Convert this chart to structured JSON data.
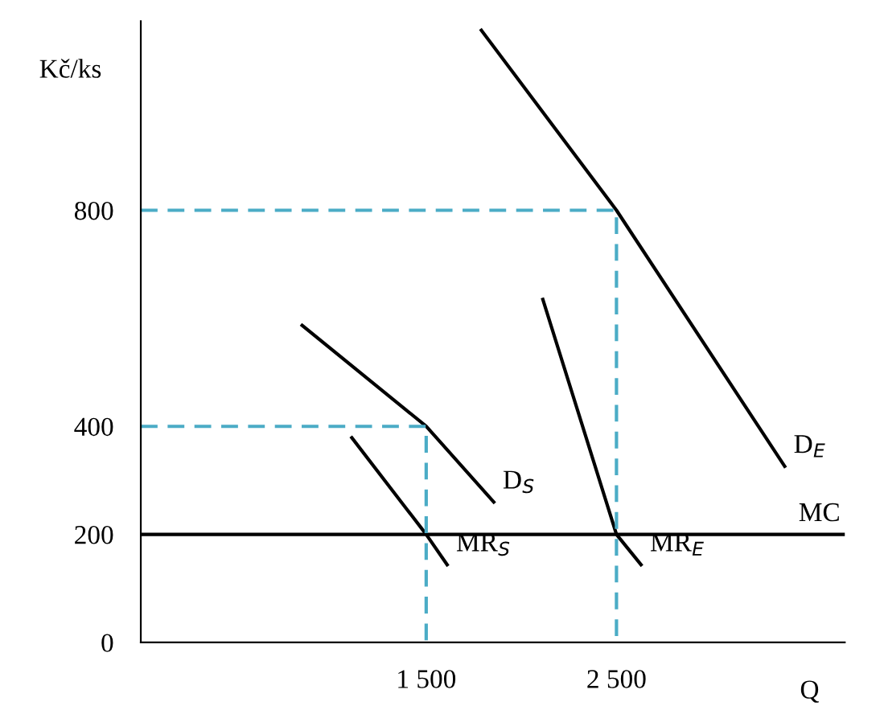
{
  "chart_data": {
    "type": "line",
    "ylabel": "Kč/ks",
    "xlabel": "Q",
    "xlim": [
      0,
      3700
    ],
    "ylim": [
      0,
      1150
    ],
    "xticks": [
      {
        "value": 1500,
        "label": "1 500"
      },
      {
        "value": 2500,
        "label": "2 500"
      }
    ],
    "yticks": [
      0,
      200,
      400,
      800
    ],
    "grid": false,
    "legend": false,
    "marker": "none",
    "series": [
      {
        "name": "D$_{E}$",
        "color": "#000000",
        "x": [
          1790,
          2500,
          3384
        ],
        "values": [
          1133,
          800,
          326
        ]
      },
      {
        "name": "D$_{S}$",
        "color": "#000000",
        "x": [
          848,
          1500,
          1855
        ],
        "values": [
          587,
          400,
          260
        ]
      },
      {
        "name": "MR$_{S}$",
        "color": "#000000",
        "x": [
          1109,
          1500,
          1610
        ],
        "values": [
          379,
          200,
          144
        ]
      },
      {
        "name": "MR$_{E}$",
        "color": "#000000",
        "x": [
          2113,
          2500,
          2629
        ],
        "values": [
          635,
          200,
          144
        ]
      },
      {
        "name": "MC",
        "color": "#000000",
        "x": [
          0,
          3700
        ],
        "values": [
          200,
          200
        ]
      },
      {
        "color": "#4bacc6",
        "line_style": "dashed",
        "x": [
          0,
          2500,
          2500
        ],
        "values": [
          800,
          800,
          0
        ]
      },
      {
        "color": "#4bacc6",
        "line_style": "dashed",
        "x": [
          0,
          1500,
          1500
        ],
        "values": [
          400,
          400,
          0
        ]
      }
    ]
  }
}
